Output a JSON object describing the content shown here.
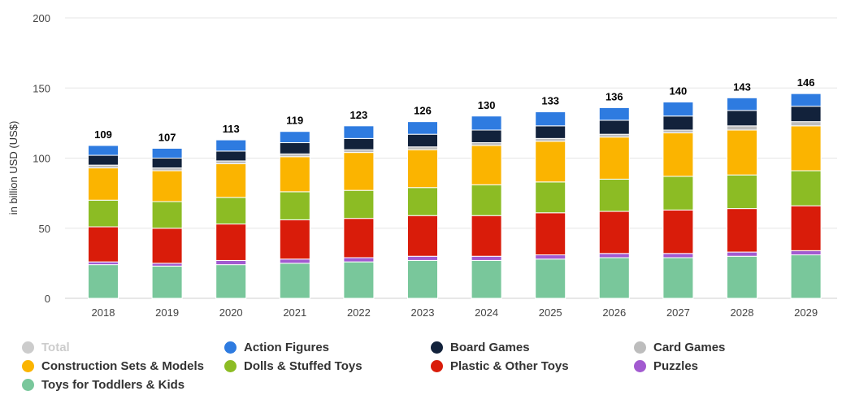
{
  "chart_data": {
    "type": "bar",
    "stacked": true,
    "categories": [
      "2018",
      "2019",
      "2020",
      "2021",
      "2022",
      "2023",
      "2024",
      "2025",
      "2026",
      "2027",
      "2028",
      "2029"
    ],
    "totals": [
      109,
      107,
      113,
      119,
      123,
      126,
      130,
      133,
      136,
      140,
      143,
      146
    ],
    "ylabel": "in billion USD (US$)",
    "ylim": [
      0,
      200
    ],
    "yticks": [
      0,
      50,
      100,
      150,
      200
    ],
    "grid": true,
    "legend_position": "bottom",
    "legend": [
      {
        "name": "Total",
        "color": "#cccccc",
        "hidden": true
      },
      {
        "name": "Action Figures",
        "color": "#2e7be0"
      },
      {
        "name": "Board Games",
        "color": "#12223b"
      },
      {
        "name": "Card Games",
        "color": "#bdbdbd"
      },
      {
        "name": "Construction Sets & Models",
        "color": "#fbb400"
      },
      {
        "name": "Dolls & Stuffed Toys",
        "color": "#8cbc24"
      },
      {
        "name": "Plastic & Other Toys",
        "color": "#d91c0a"
      },
      {
        "name": "Puzzles",
        "color": "#a25ad0"
      },
      {
        "name": "Toys for Toddlers & Kids",
        "color": "#79c79b"
      }
    ],
    "series": [
      {
        "name": "Toys for Toddlers & Kids",
        "color": "#79c79b",
        "values": [
          24,
          23,
          24,
          25,
          26,
          27,
          27,
          28,
          29,
          29,
          30,
          31
        ]
      },
      {
        "name": "Puzzles",
        "color": "#a25ad0",
        "values": [
          2,
          2,
          3,
          3,
          3,
          3,
          3,
          3,
          3,
          3,
          3,
          3
        ]
      },
      {
        "name": "Plastic & Other Toys",
        "color": "#d91c0a",
        "values": [
          25,
          25,
          26,
          28,
          28,
          29,
          29,
          30,
          30,
          31,
          31,
          32
        ]
      },
      {
        "name": "Dolls & Stuffed Toys",
        "color": "#8cbc24",
        "values": [
          19,
          19,
          19,
          20,
          20,
          20,
          22,
          22,
          23,
          24,
          24,
          25
        ]
      },
      {
        "name": "Construction Sets & Models",
        "color": "#fbb400",
        "values": [
          23,
          22,
          24,
          25,
          27,
          27,
          28,
          29,
          30,
          31,
          32,
          32
        ]
      },
      {
        "name": "Card Games",
        "color": "#bdbdbd",
        "values": [
          2,
          2,
          2,
          2,
          2,
          2,
          2,
          2,
          2,
          2,
          3,
          3
        ]
      },
      {
        "name": "Board Games",
        "color": "#12223b",
        "values": [
          7,
          7,
          7,
          8,
          8,
          9,
          9,
          9,
          10,
          10,
          11,
          11
        ]
      },
      {
        "name": "Action Figures",
        "color": "#2e7be0",
        "values": [
          7,
          7,
          8,
          8,
          9,
          9,
          10,
          10,
          9,
          10,
          9,
          9
        ]
      }
    ]
  }
}
